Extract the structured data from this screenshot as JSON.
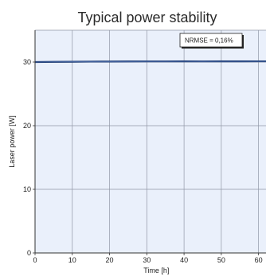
{
  "chart_data": {
    "type": "line",
    "title": "Typical power stability",
    "xlabel": "Time [h]",
    "ylabel": "Laser power [W]",
    "xlim": [
      0,
      62
    ],
    "ylim": [
      0,
      35
    ],
    "x_ticks": [
      "0",
      "10",
      "20",
      "30",
      "40",
      "50",
      "60"
    ],
    "y_ticks": [
      "0",
      "10",
      "20",
      "30"
    ],
    "grid": true,
    "annotation": "NRMSE = 0,16%",
    "annotation_placement": "top-right",
    "series": [
      {
        "x": [
          0,
          5,
          10,
          15,
          20,
          25,
          30,
          35,
          40,
          45,
          50,
          55,
          60,
          62
        ],
        "values": [
          30.0,
          30.03,
          30.05,
          30.07,
          30.08,
          30.09,
          30.1,
          30.1,
          30.11,
          30.1,
          30.11,
          30.11,
          30.12,
          30.12
        ]
      }
    ],
    "colors": {
      "plot_background": "#eaf0fb",
      "grid": "#9097a6",
      "line": "#1c3a72",
      "frame": "#333333"
    }
  }
}
